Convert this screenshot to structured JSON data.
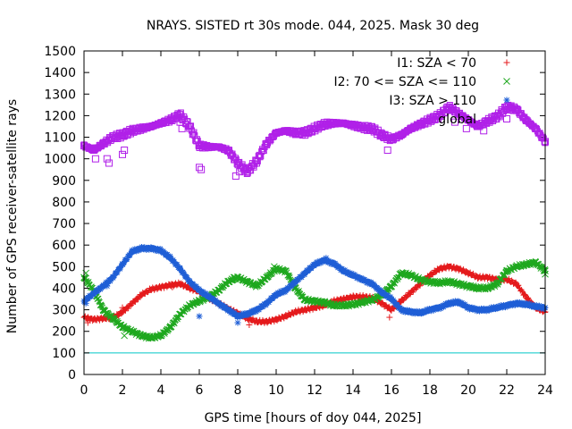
{
  "chart_data": {
    "type": "scatter",
    "title": "NRAYS. SISTED rt 30s mode. 044, 2025. Mask 30 deg",
    "xlabel": "GPS time [hours of doy 044, 2025]",
    "ylabel": "Number of GPS receiver-satellite rays",
    "xlim": [
      0,
      24
    ],
    "ylim": [
      0,
      1500
    ],
    "xticks": [
      0,
      2,
      4,
      6,
      8,
      10,
      12,
      14,
      16,
      18,
      20,
      22,
      24
    ],
    "yticks": [
      0,
      100,
      200,
      300,
      400,
      500,
      600,
      700,
      800,
      900,
      1000,
      1100,
      1200,
      1300,
      1400,
      1500
    ],
    "reference_line": {
      "y": 100,
      "color": "#00c8c8"
    },
    "legend_position": "top-right",
    "series": [
      {
        "name": "I1: SZA < 70",
        "marker": "+",
        "color": "#e41a1c",
        "x": [
          0,
          0.5,
          1,
          1.5,
          2,
          2.5,
          3,
          3.5,
          4,
          4.5,
          5,
          5.5,
          6,
          6.5,
          7,
          7.5,
          8,
          8.5,
          9,
          9.5,
          10,
          10.5,
          11,
          11.5,
          12,
          12.5,
          13,
          13.5,
          14,
          14.5,
          15,
          15.5,
          16,
          16.5,
          17,
          17.5,
          18,
          18.5,
          19,
          19.5,
          20,
          20.5,
          21,
          21.5,
          22,
          22.5,
          23,
          23.5,
          24
        ],
        "y": [
          265,
          255,
          260,
          262,
          290,
          330,
          370,
          395,
          405,
          415,
          420,
          400,
          385,
          355,
          330,
          305,
          285,
          260,
          245,
          245,
          255,
          270,
          290,
          300,
          310,
          320,
          340,
          350,
          360,
          360,
          355,
          330,
          300,
          340,
          380,
          420,
          460,
          490,
          500,
          490,
          470,
          450,
          450,
          440,
          440,
          420,
          360,
          310,
          290
        ]
      },
      {
        "name": "I2: 70 <= SZA <= 110",
        "marker": "x",
        "color": "#1fa81f",
        "x": [
          0,
          0.5,
          1,
          1.5,
          2,
          2.5,
          3,
          3.5,
          4,
          4.5,
          5,
          5.5,
          6,
          6.5,
          7,
          7.5,
          8,
          8.5,
          9,
          9.5,
          10,
          10.5,
          11,
          11.5,
          12,
          12.5,
          13,
          13.5,
          14,
          14.5,
          15,
          15.5,
          16,
          16.5,
          17,
          17.5,
          18,
          18.5,
          19,
          19.5,
          20,
          20.5,
          21,
          21.5,
          22,
          22.5,
          23,
          23.5,
          24
        ],
        "y": [
          450,
          390,
          300,
          260,
          220,
          200,
          180,
          170,
          180,
          220,
          280,
          320,
          340,
          360,
          390,
          430,
          450,
          430,
          410,
          450,
          490,
          480,
          400,
          345,
          340,
          335,
          320,
          320,
          325,
          335,
          345,
          370,
          410,
          470,
          460,
          440,
          430,
          425,
          430,
          420,
          410,
          400,
          400,
          420,
          480,
          500,
          510,
          520,
          480
        ]
      },
      {
        "name": "I3: SZA > 110",
        "marker": "*",
        "color": "#1f5fd6",
        "x": [
          0,
          0.5,
          1,
          1.5,
          2,
          2.5,
          3,
          3.5,
          4,
          4.5,
          5,
          5.5,
          6,
          6.5,
          7,
          7.5,
          8,
          8.5,
          9,
          9.5,
          10,
          10.5,
          11,
          11.5,
          12,
          12.5,
          13,
          13.5,
          14,
          14.5,
          15,
          15.5,
          16,
          16.5,
          17,
          17.5,
          18,
          18.5,
          19,
          19.5,
          20,
          20.5,
          21,
          21.5,
          22,
          22.5,
          23,
          23.5,
          24
        ],
        "y": [
          340,
          375,
          410,
          450,
          510,
          570,
          585,
          585,
          575,
          540,
          490,
          430,
          390,
          360,
          330,
          300,
          270,
          280,
          300,
          330,
          370,
          390,
          430,
          470,
          510,
          530,
          515,
          480,
          460,
          440,
          420,
          380,
          350,
          300,
          290,
          285,
          300,
          310,
          330,
          335,
          310,
          300,
          300,
          310,
          320,
          330,
          325,
          315,
          310
        ]
      },
      {
        "name": "global",
        "marker": "square",
        "color": "#b020e8",
        "x": [
          0,
          0.5,
          1,
          1.5,
          2,
          2.5,
          3,
          3.5,
          4,
          4.5,
          5,
          5.5,
          6,
          6.5,
          7,
          7.5,
          8,
          8.5,
          9,
          9.5,
          10,
          10.5,
          11,
          11.5,
          12,
          12.5,
          13,
          13.5,
          14,
          14.5,
          15,
          15.5,
          16,
          16.5,
          17,
          17.5,
          18,
          18.5,
          19,
          19.5,
          20,
          20.5,
          21,
          21.5,
          22,
          22.5,
          23,
          23.5,
          24
        ],
        "y": [
          1060,
          1040,
          1070,
          1100,
          1110,
          1130,
          1140,
          1150,
          1165,
          1180,
          1205,
          1150,
          1060,
          1055,
          1055,
          1040,
          980,
          940,
          990,
          1070,
          1120,
          1130,
          1120,
          1120,
          1140,
          1160,
          1165,
          1165,
          1155,
          1145,
          1140,
          1110,
          1090,
          1110,
          1140,
          1160,
          1180,
          1200,
          1240,
          1210,
          1180,
          1150,
          1175,
          1195,
          1240,
          1230,
          1180,
          1140,
          1080
        ]
      }
    ],
    "outliers": [
      {
        "series": 0,
        "x": [
          0.2,
          2.0,
          4.6,
          8.6,
          15.9
        ],
        "y": [
          240,
          310,
          405,
          230,
          265
        ]
      },
      {
        "series": 1,
        "x": [
          0.1,
          2.1,
          6.0,
          7.8,
          9.9,
          24.0
        ],
        "y": [
          470,
          180,
          340,
          450,
          500,
          465
        ]
      },
      {
        "series": 2,
        "x": [
          0.1,
          1.2,
          6.0,
          8.0,
          12.6,
          17.3
        ],
        "y": [
          330,
          410,
          270,
          240,
          540,
          290
        ]
      },
      {
        "series": 3,
        "x": [
          0.3,
          0.6,
          1.2,
          1.3,
          2.0,
          2.1,
          5.0,
          5.1,
          6.0,
          6.1,
          7.9,
          8.1,
          15.8,
          19.3,
          19.9,
          20.8,
          22.2
        ],
        "y": [
          1050,
          1000,
          1000,
          980,
          1020,
          1040,
          1170,
          1140,
          960,
          950,
          920,
          940,
          1040,
          1170,
          1140,
          1130,
          1240
        ]
      }
    ]
  }
}
